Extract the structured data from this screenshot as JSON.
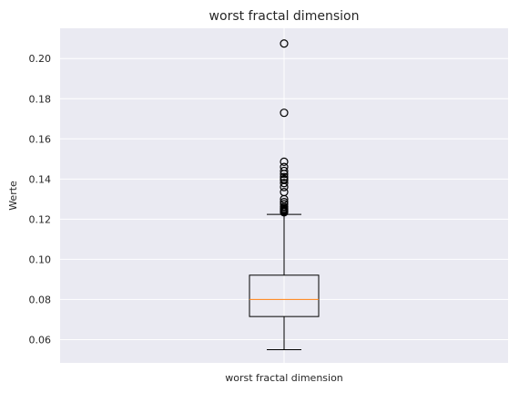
{
  "chart_data": {
    "type": "box",
    "title": "worst fractal dimension",
    "xlabel": "",
    "ylabel": "Werte",
    "categories": [
      "worst fractal dimension"
    ],
    "ylim": [
      0.0484,
      0.2151
    ],
    "yticks": [
      0.06,
      0.08,
      0.1,
      0.12,
      0.14,
      0.16,
      0.18,
      0.2
    ],
    "ytick_labels": [
      "0.06",
      "0.08",
      "0.10",
      "0.12",
      "0.14",
      "0.16",
      "0.18",
      "0.20"
    ],
    "grid": true,
    "legend": "none",
    "box": {
      "whisker_low": 0.055,
      "q1": 0.0715,
      "median": 0.08,
      "q3": 0.0921,
      "whisker_high": 0.1224
    },
    "outliers": [
      0.1234,
      0.1238,
      0.1241,
      0.1245,
      0.1249,
      0.1255,
      0.1262,
      0.1275,
      0.1285,
      0.13,
      0.1335,
      0.136,
      0.138,
      0.1395,
      0.14,
      0.141,
      0.1425,
      0.144,
      0.146,
      0.1486,
      0.173,
      0.2075
    ],
    "colors": {
      "background": "#eaeaf2",
      "grid": "#ffffff",
      "box": "#000000",
      "median": "#ff7f0e",
      "text": "#262626"
    }
  }
}
